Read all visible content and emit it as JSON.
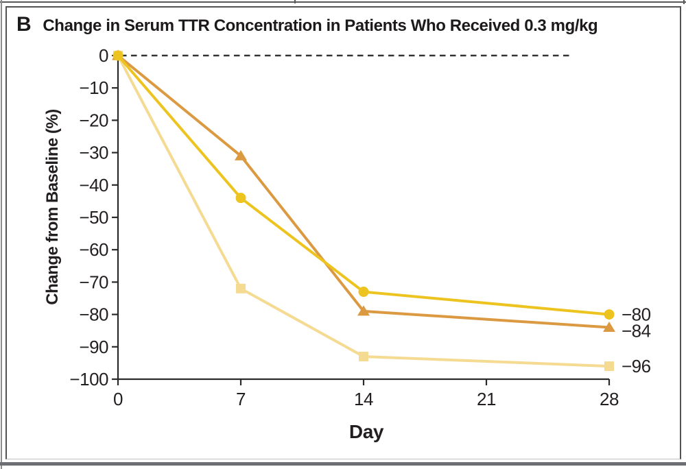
{
  "panel": {
    "label": "B",
    "title": "Change in Serum TTR Concentration in Patients Who Received 0.3 mg/kg"
  },
  "chart_data": {
    "type": "line",
    "title": "Change in Serum TTR Concentration in Patients Who Received 0.3 mg/kg",
    "xlabel": "Day",
    "ylabel": "Change from Baseline (%)",
    "x": [
      0,
      7,
      14,
      28
    ],
    "x_ticks": [
      0,
      7,
      14,
      21,
      28
    ],
    "y_ticks": [
      0,
      -10,
      -20,
      -30,
      -40,
      -50,
      -60,
      -70,
      -80,
      -90,
      -100
    ],
    "xlim": [
      0,
      28
    ],
    "ylim": [
      -100,
      0
    ],
    "grid": false,
    "legend": false,
    "zero_reference_line": true,
    "series": [
      {
        "name": "square-patient",
        "marker": "square",
        "color": "#F5DA92",
        "values": [
          0,
          -72,
          -93,
          -96
        ],
        "end_label": "−96"
      },
      {
        "name": "triangle-patient",
        "marker": "triangle",
        "color": "#DB9A42",
        "values": [
          0,
          -31,
          -79,
          -84
        ],
        "end_label": "−84"
      },
      {
        "name": "circle-patient",
        "marker": "circle",
        "color": "#EDC41F",
        "values": [
          0,
          -44,
          -73,
          -80
        ],
        "end_label": "−80"
      }
    ],
    "axis_color": "#2b2a2a",
    "dashed_line_color": "#333333"
  }
}
